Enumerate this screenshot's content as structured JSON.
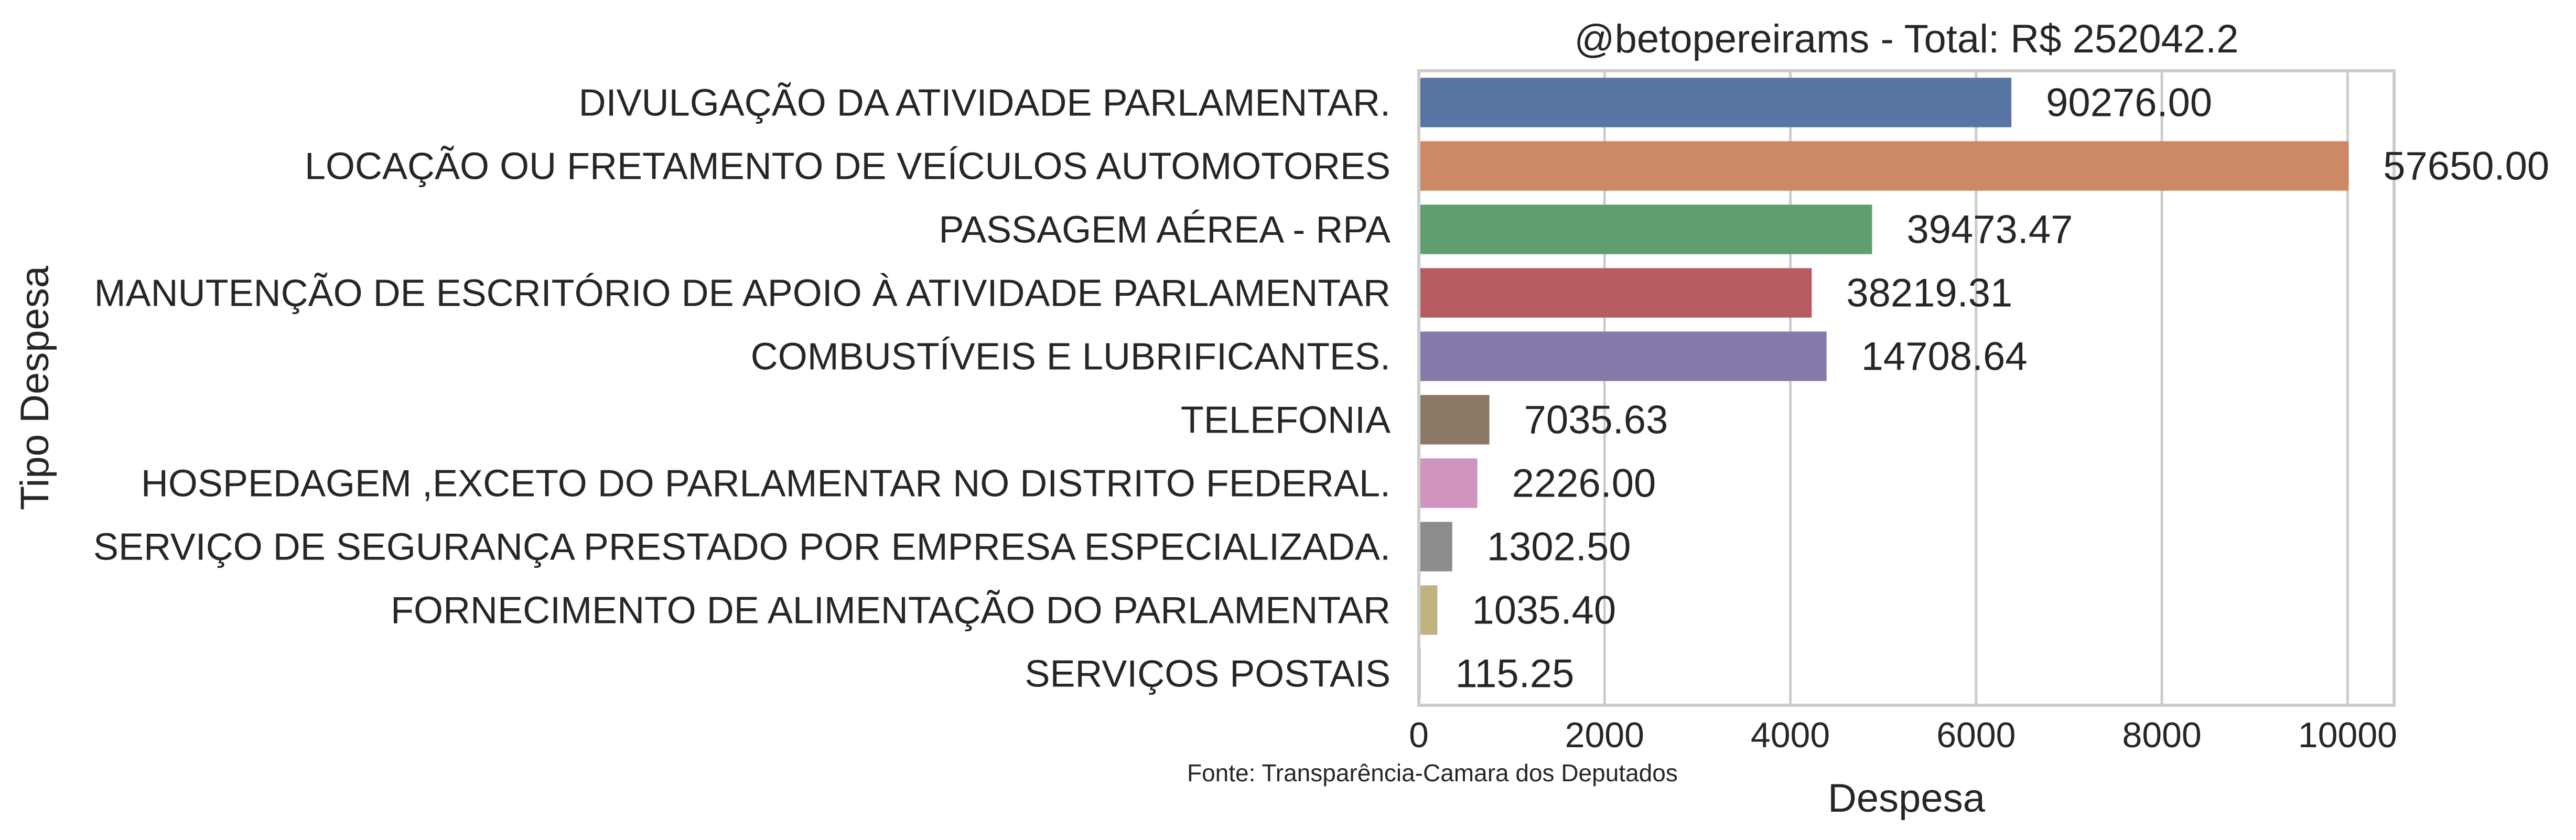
{
  "chart_data": {
    "type": "bar",
    "orientation": "horizontal",
    "title": "@betopereirams - Total: R$ 252042.2",
    "xlabel": "Despesa",
    "ylabel": "Tipo Despesa",
    "xlim": [
      0,
      10500
    ],
    "xticks": [
      0,
      2000,
      4000,
      6000,
      8000,
      10000
    ],
    "grid": "vertical",
    "legend": "none",
    "source_note": "Fonte: Transparência-Camara dos Deputados",
    "categories": [
      "DIVULGAÇÃO DA ATIVIDADE PARLAMENTAR.",
      "LOCAÇÃO OU FRETAMENTO DE VEÍCULOS AUTOMOTORES",
      "PASSAGEM AÉREA - RPA",
      "MANUTENÇÃO DE ESCRITÓRIO DE APOIO À ATIVIDADE PARLAMENTAR",
      "COMBUSTÍVEIS E LUBRIFICANTES.",
      "TELEFONIA",
      "HOSPEDAGEM ,EXCETO DO PARLAMENTAR NO DISTRITO FEDERAL.",
      "SERVIÇO DE SEGURANÇA PRESTADO POR EMPRESA ESPECIALIZADA.",
      "FORNECIMENTO DE ALIMENTAÇÃO DO PARLAMENTAR",
      "SERVIÇOS POSTAIS"
    ],
    "values": [
      6380,
      10010,
      4880,
      4230,
      4390,
      760,
      630,
      360,
      200,
      20
    ],
    "data_labels": [
      "90276.00",
      "57650.00",
      "39473.47",
      "38219.31",
      "14708.64",
      "7035.63",
      "2226.00",
      "1302.50",
      "1035.40",
      "115.25"
    ],
    "colors": [
      "#5975a4",
      "#cc8963",
      "#5f9e6e",
      "#b55d60",
      "#857aab",
      "#8d7866",
      "#d095bf",
      "#8c8c8c",
      "#c1b37f",
      "#64b5cd"
    ]
  }
}
